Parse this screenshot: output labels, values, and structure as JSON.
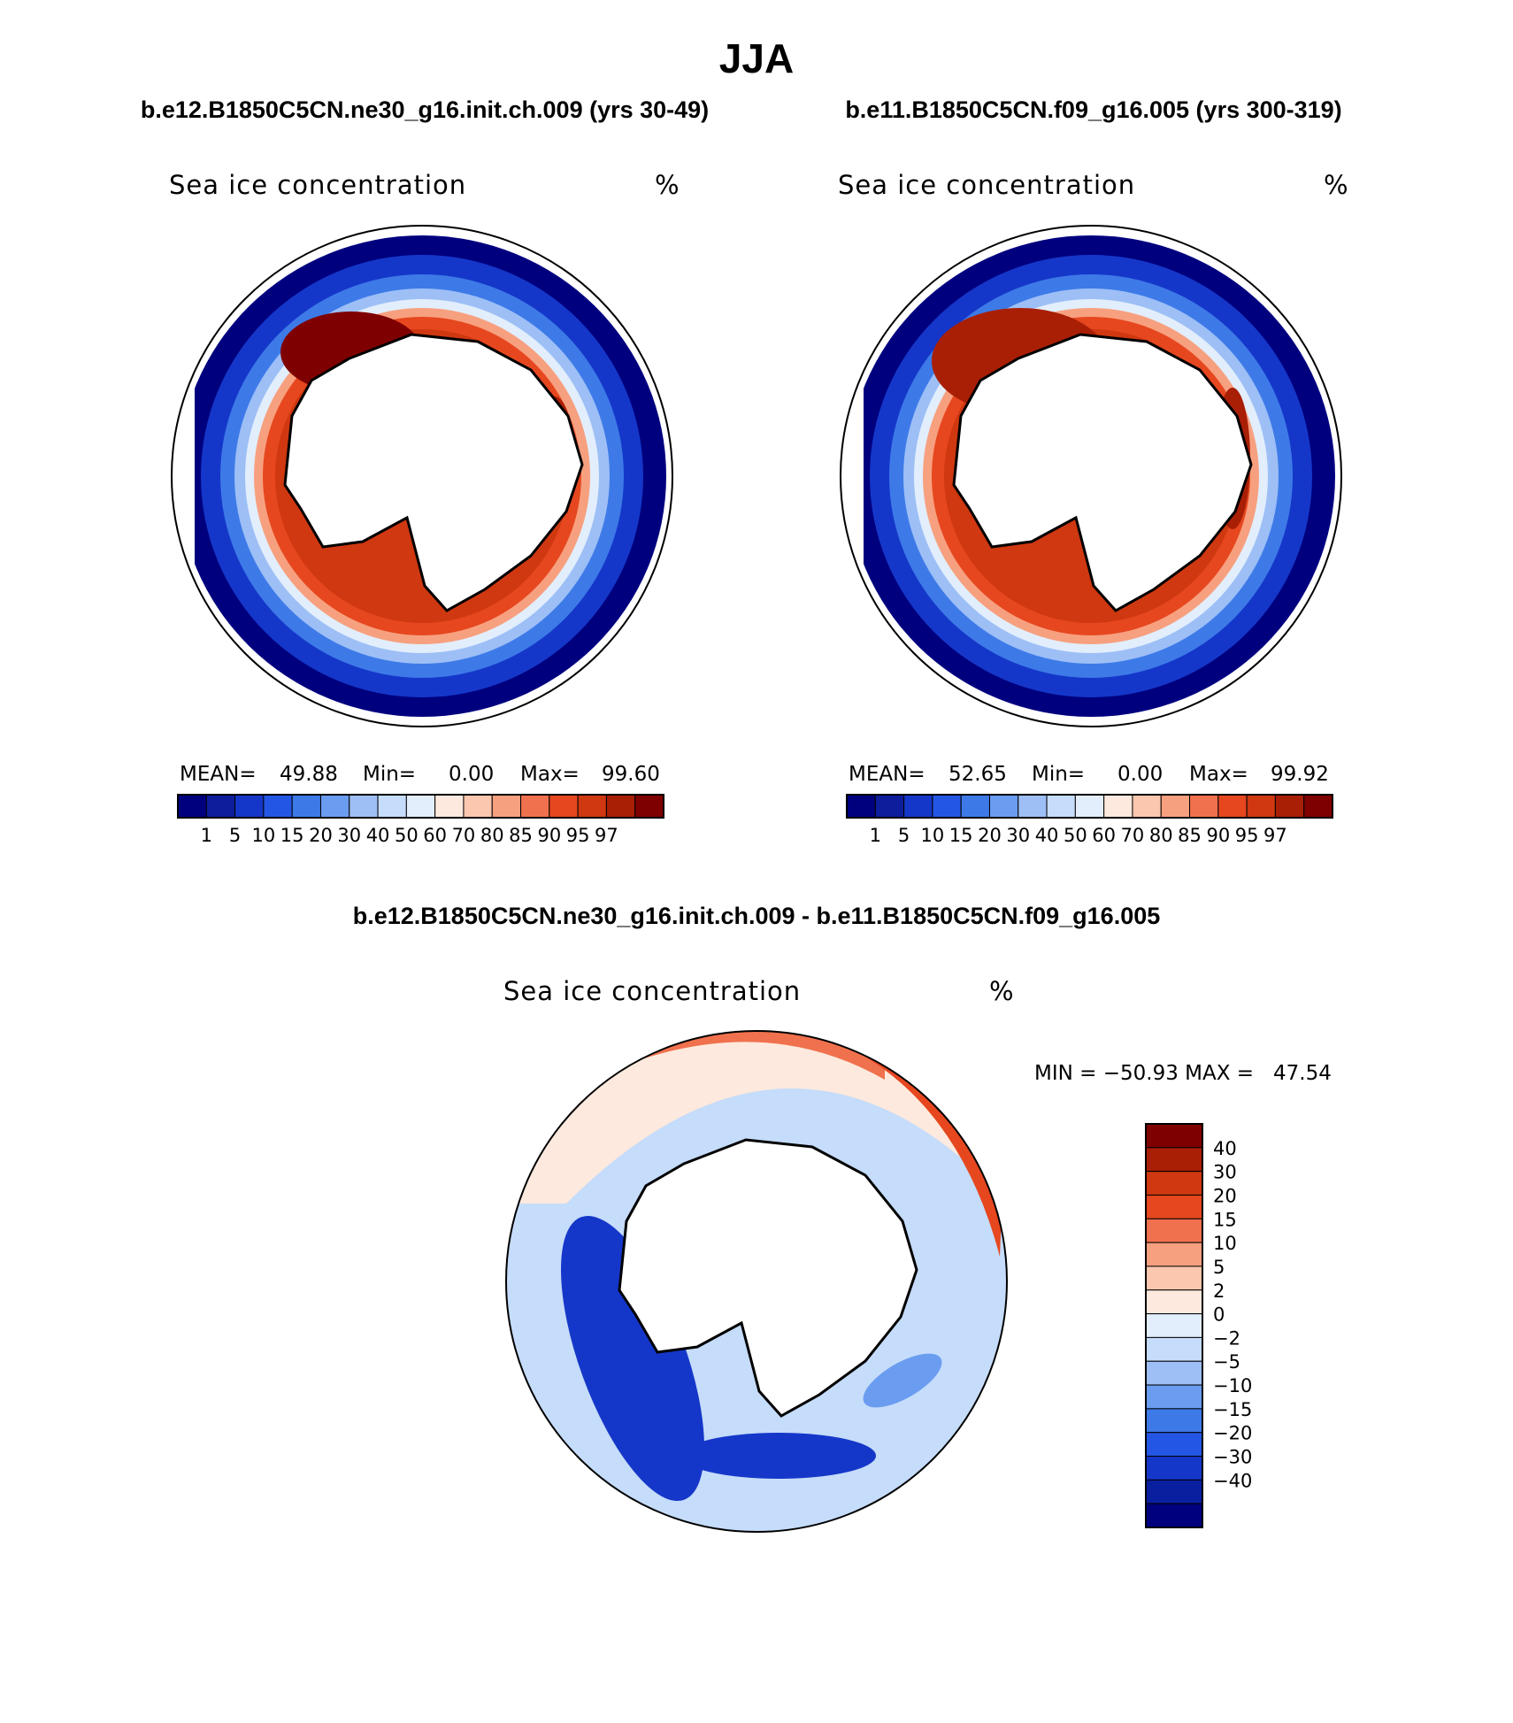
{
  "figure": {
    "title": "JJA"
  },
  "colors": {
    "abs_levels": [
      "#00007f",
      "#0d1d9b",
      "#1537c9",
      "#2456e6",
      "#3d7ae8",
      "#6a9cf0",
      "#9dbff6",
      "#c5dcfa",
      "#e2eefc",
      "#fde9dd",
      "#fbc7ae",
      "#f7a07f",
      "#f0714d",
      "#e6471f",
      "#cf3810",
      "#a91f06",
      "#7f0000"
    ],
    "diff_levels": [
      "#00007f",
      "#0a1ea0",
      "#1537c9",
      "#2456e6",
      "#3d7ae8",
      "#6a9cf0",
      "#9dbff6",
      "#c5dcfa",
      "#e2eefc",
      "#fde9dd",
      "#fbc7ae",
      "#f7a07f",
      "#f0714d",
      "#e6471f",
      "#cf3810",
      "#a91f06",
      "#7f0000"
    ],
    "land": "#ffffff",
    "coast": "#000000"
  },
  "panels": {
    "left": {
      "heading": "b.e12.B1850C5CN.ne30_g16.init.ch.009 (yrs 30-49)",
      "variable": "Sea ice concentration",
      "units": "%",
      "mean_label": "MEAN=",
      "mean_value": "49.88",
      "min_label": "Min=",
      "min_value": "0.00",
      "max_label": "Max=",
      "max_value": "99.60"
    },
    "right": {
      "heading": "b.e11.B1850C5CN.f09_g16.005 (yrs 300-319)",
      "variable": "Sea ice concentration",
      "units": "%",
      "mean_label": "MEAN=",
      "mean_value": "52.65",
      "min_label": "Min=",
      "min_value": "0.00",
      "max_label": "Max=",
      "max_value": "99.92"
    },
    "diff": {
      "heading": "b.e12.B1850C5CN.ne30_g16.init.ch.009 - b.e11.B1850C5CN.f09_g16.005",
      "variable": "Sea ice concentration",
      "units": "%",
      "range_text": "MIN = −50.93 MAX =   47.54"
    }
  },
  "colorbars": {
    "abs_ticks": [
      "1",
      "5",
      "10",
      "15",
      "20",
      "30",
      "40",
      "50",
      "60",
      "70",
      "80",
      "85",
      "90",
      "95",
      "97"
    ],
    "diff_ticks": [
      "40",
      "30",
      "20",
      "15",
      "10",
      "5",
      "2",
      "0",
      "−2",
      "−5",
      "−10",
      "−15",
      "−20",
      "−30",
      "−40"
    ]
  }
}
